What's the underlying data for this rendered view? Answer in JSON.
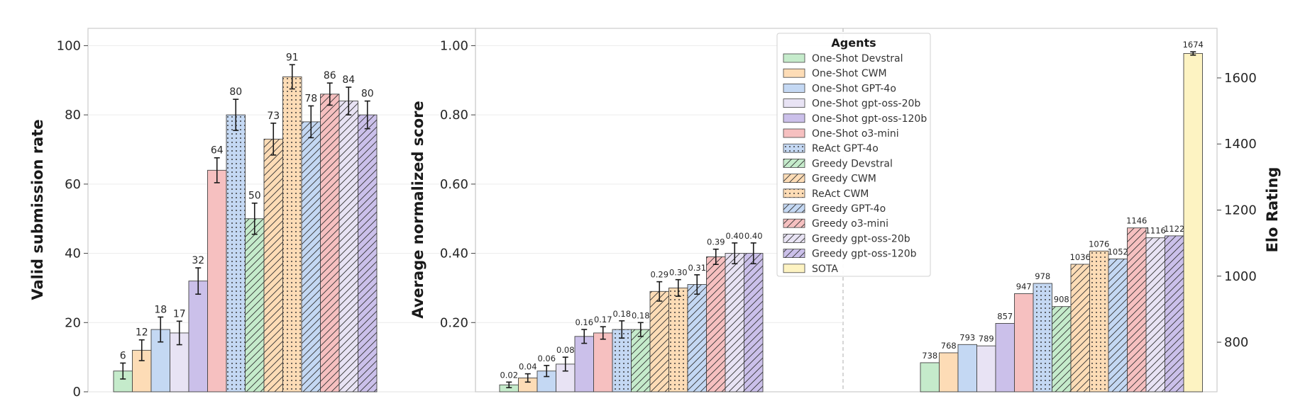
{
  "agents": [
    {
      "name": "One-Shot Devstral",
      "color": "#c5ebcb",
      "pattern": "none"
    },
    {
      "name": "One-Shot CWM",
      "color": "#fddcb6",
      "pattern": "none"
    },
    {
      "name": "One-Shot GPT-4o",
      "color": "#c4d8f3",
      "pattern": "none"
    },
    {
      "name": "One-Shot gpt-oss-20b",
      "color": "#e8e3f4",
      "pattern": "none"
    },
    {
      "name": "One-Shot gpt-oss-120b",
      "color": "#cbc0ea",
      "pattern": "none"
    },
    {
      "name": "One-Shot o3-mini",
      "color": "#f6c0c0",
      "pattern": "none"
    },
    {
      "name": "ReAct GPT-4o",
      "color": "#c4d8f3",
      "pattern": "dots"
    },
    {
      "name": "Greedy Devstral",
      "color": "#c5ebcb",
      "pattern": "hatch"
    },
    {
      "name": "Greedy CWM",
      "color": "#fddcb6",
      "pattern": "hatch"
    },
    {
      "name": "ReAct CWM",
      "color": "#fddcb6",
      "pattern": "dots"
    },
    {
      "name": "Greedy GPT-4o",
      "color": "#c4d8f3",
      "pattern": "hatch"
    },
    {
      "name": "Greedy o3-mini",
      "color": "#f6c0c0",
      "pattern": "hatch"
    },
    {
      "name": "Greedy gpt-oss-20b",
      "color": "#e8e3f4",
      "pattern": "hatch"
    },
    {
      "name": "Greedy gpt-oss-120b",
      "color": "#cbc0ea",
      "pattern": "hatch"
    },
    {
      "name": "SOTA",
      "color": "#fdf3c2",
      "pattern": "none"
    }
  ],
  "chart_data": [
    {
      "type": "bar",
      "ylabel": "Valid submission rate",
      "ylim": [
        0,
        105
      ],
      "yticks": [
        0,
        20,
        40,
        60,
        80,
        100
      ],
      "ytick_labels": [
        "0",
        "20",
        "40",
        "60",
        "80",
        "100"
      ],
      "values": [
        6,
        12,
        18,
        17,
        32,
        64,
        80,
        50,
        73,
        91,
        78,
        86,
        84,
        80
      ],
      "labels": [
        "6",
        "12",
        "18",
        "17",
        "32",
        "64",
        "80",
        "50",
        "73",
        "91",
        "78",
        "86",
        "84",
        "80"
      ],
      "errors": [
        2.3,
        3,
        3.6,
        3.4,
        3.8,
        3.6,
        4.5,
        4.5,
        4.6,
        3.5,
        4.6,
        3.2,
        4,
        4
      ]
    },
    {
      "type": "bar",
      "ylabel": "Average normalized score",
      "ylim": [
        0,
        1.05
      ],
      "yticks": [
        0.2,
        0.4,
        0.6,
        0.8,
        1.0
      ],
      "ytick_labels": [
        "0.20",
        "0.40",
        "0.60",
        "0.80",
        "1.00"
      ],
      "values": [
        0.02,
        0.04,
        0.06,
        0.08,
        0.16,
        0.17,
        0.18,
        0.18,
        0.29,
        0.3,
        0.31,
        0.39,
        0.4,
        0.4
      ],
      "labels": [
        "0.02",
        "0.04",
        "0.06",
        "0.08",
        "0.16",
        "0.17",
        "0.18",
        "0.18",
        "0.29",
        "0.30",
        "0.31",
        "0.39",
        "0.40",
        "0.40"
      ],
      "errors": [
        0.008,
        0.012,
        0.016,
        0.02,
        0.02,
        0.018,
        0.025,
        0.02,
        0.028,
        0.024,
        0.028,
        0.022,
        0.03,
        0.03
      ]
    },
    {
      "type": "bar",
      "ylabel": "Elo Rating",
      "ylim": [
        650,
        1750
      ],
      "yticks": [
        800,
        1000,
        1200,
        1400,
        1600
      ],
      "ytick_labels": [
        "800",
        "1000",
        "1200",
        "1400",
        "1600"
      ],
      "values": [
        738,
        768,
        793,
        789,
        857,
        947,
        978,
        908,
        1036,
        1076,
        1052,
        1146,
        1116,
        1122,
        1674
      ],
      "labels": [
        "738",
        "768",
        "793",
        "789",
        "857",
        "947",
        "978",
        "908",
        "1036",
        "1076",
        "1052",
        "1146",
        "1116",
        "1122",
        "1674"
      ],
      "errors": [
        0,
        0,
        0,
        0,
        0,
        0,
        0,
        0,
        0,
        0,
        0,
        0,
        0,
        0,
        5
      ]
    }
  ],
  "legend": {
    "title": "Agents",
    "placement": "upper center"
  }
}
